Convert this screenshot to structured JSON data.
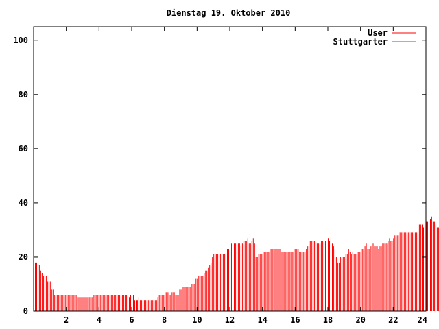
{
  "chart_data": {
    "type": "bar",
    "title": "Dienstag 19. Oktober 2010",
    "xlabel": "",
    "ylabel": "",
    "xlim": [
      0,
      24
    ],
    "ylim": [
      0,
      105
    ],
    "x_ticks": [
      2,
      4,
      6,
      8,
      10,
      12,
      14,
      16,
      18,
      20,
      22,
      24
    ],
    "y_ticks": [
      0,
      20,
      40,
      60,
      80,
      100
    ],
    "grid": false,
    "legend_position": "top-right",
    "interval_minutes": 5,
    "series": [
      {
        "name": "User",
        "color": "#ff0000",
        "values": [
          20,
          18,
          18,
          17,
          17,
          15,
          14,
          13,
          13,
          13,
          11,
          11,
          11,
          8,
          8,
          6,
          6,
          6,
          6,
          6,
          6,
          6,
          6,
          6,
          6,
          6,
          6,
          6,
          6,
          6,
          6,
          6,
          5,
          5,
          5,
          5,
          5,
          5,
          5,
          5,
          5,
          5,
          5,
          5,
          6,
          6,
          6,
          6,
          6,
          6,
          6,
          6,
          6,
          6,
          6,
          6,
          6,
          6,
          6,
          6,
          6,
          6,
          6,
          6,
          6,
          6,
          6,
          6,
          6,
          5,
          5,
          6,
          6,
          6,
          4,
          4,
          4,
          5,
          4,
          4,
          4,
          4,
          4,
          4,
          4,
          4,
          4,
          4,
          4,
          4,
          4,
          5,
          6,
          6,
          6,
          6,
          6,
          7,
          7,
          7,
          6,
          7,
          7,
          7,
          6,
          6,
          6,
          8,
          8,
          9,
          9,
          9,
          9,
          9,
          9,
          9,
          10,
          10,
          10,
          12,
          12,
          13,
          13,
          13,
          13,
          14,
          15,
          15,
          16,
          17,
          18,
          20,
          21,
          21,
          21,
          21,
          21,
          21,
          21,
          21,
          21,
          22,
          23,
          23,
          25,
          25,
          25,
          25,
          25,
          25,
          25,
          25,
          24,
          25,
          26,
          26,
          26,
          27,
          25,
          25,
          26,
          27,
          25,
          20,
          20,
          21,
          21,
          21,
          21,
          22,
          22,
          22,
          22,
          22,
          23,
          23,
          23,
          23,
          23,
          23,
          23,
          23,
          22,
          22,
          22,
          22,
          22,
          22,
          22,
          22,
          22,
          23,
          23,
          23,
          23,
          22,
          22,
          22,
          22,
          22,
          23,
          24,
          26,
          26,
          26,
          26,
          26,
          25,
          25,
          25,
          25,
          26,
          26,
          26,
          26,
          25,
          27,
          26,
          25,
          25,
          24,
          23,
          20,
          18,
          18,
          20,
          20,
          20,
          20,
          21,
          21,
          23,
          22,
          21,
          22,
          21,
          21,
          21,
          22,
          22,
          22,
          23,
          23,
          24,
          25,
          23,
          23,
          24,
          24,
          25,
          24,
          24,
          24,
          23,
          24,
          24,
          25,
          25,
          25,
          25,
          26,
          27,
          26,
          26,
          27,
          28,
          28,
          28,
          29,
          29,
          29,
          29,
          29,
          29,
          29,
          29,
          29,
          29,
          29,
          29,
          29,
          29,
          32,
          32,
          32,
          32,
          31,
          31,
          33,
          33,
          33,
          34,
          35,
          33,
          33,
          32,
          31,
          31,
          31,
          30,
          30,
          29,
          30,
          30,
          29,
          27,
          27,
          25,
          24,
          23,
          23,
          22,
          22,
          21,
          22
        ]
      },
      {
        "name": "Stuttgarter",
        "color": "#008b8b",
        "values": []
      }
    ]
  }
}
